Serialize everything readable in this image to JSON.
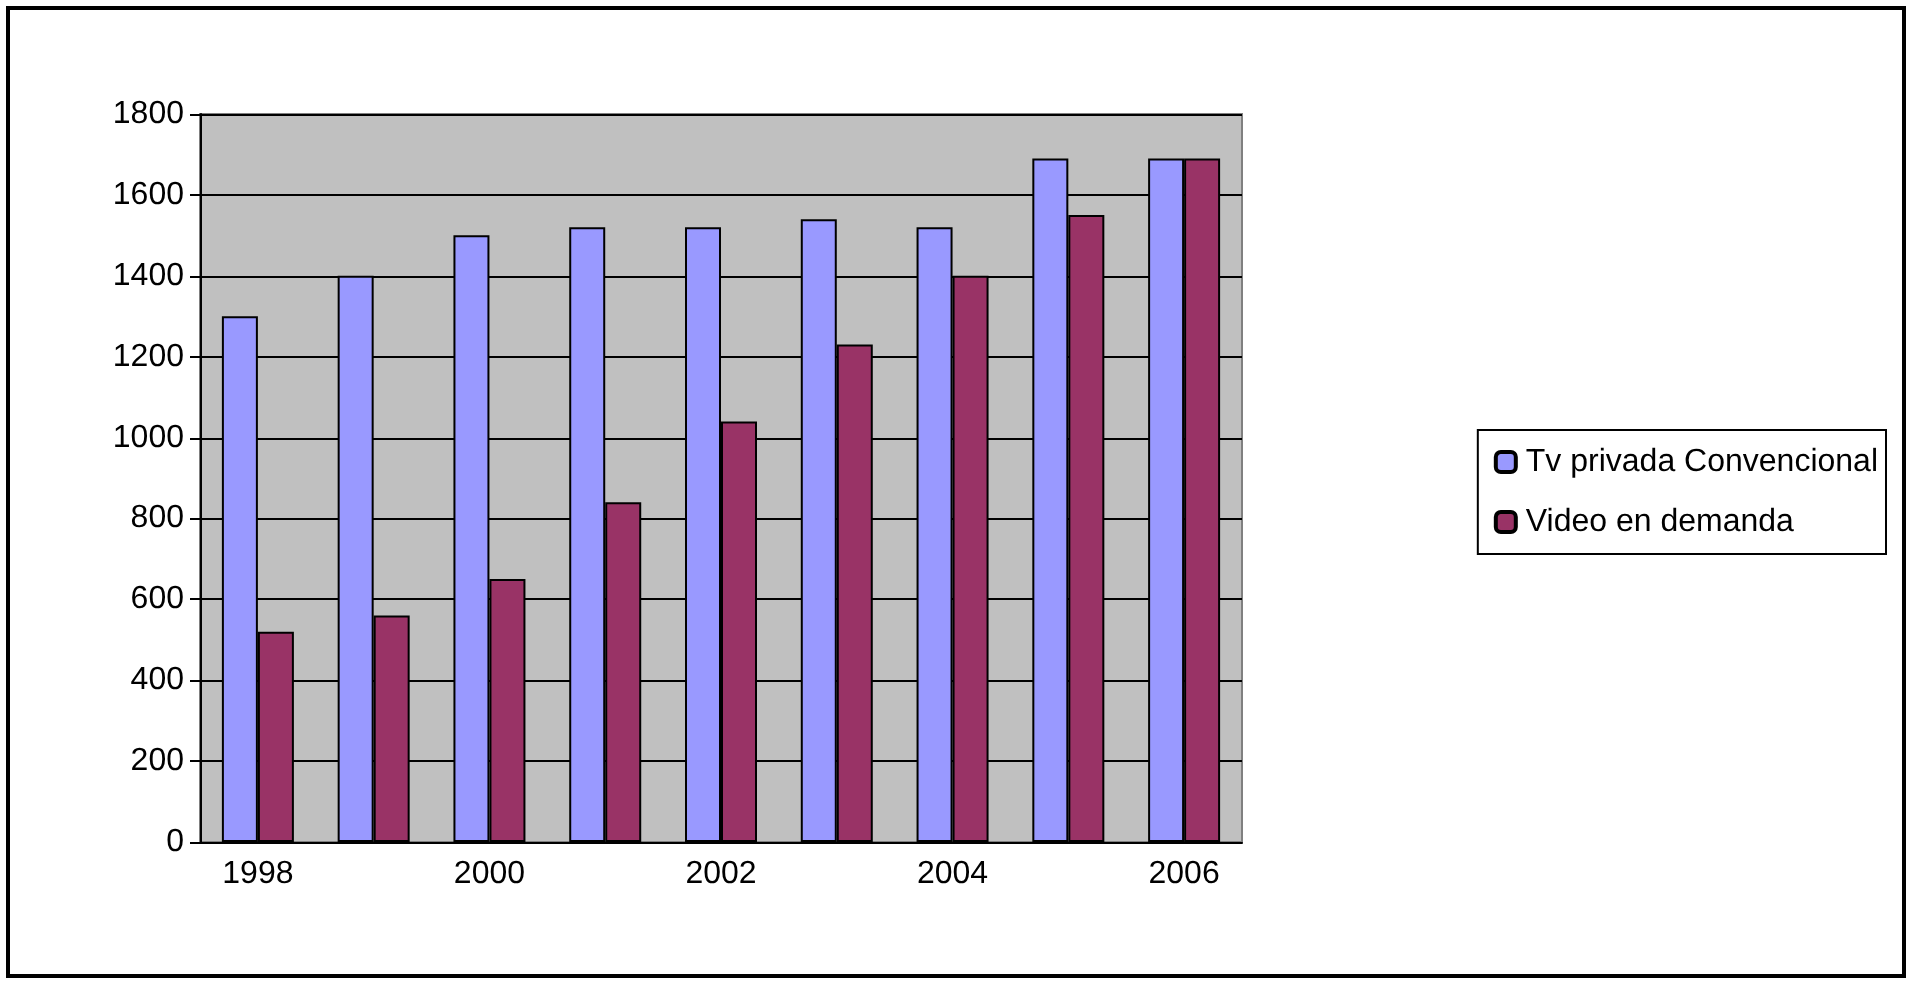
{
  "chart_data": {
    "type": "bar",
    "categories": [
      "1998",
      null,
      "2000",
      null,
      "2002",
      null,
      "2004",
      null,
      "2006"
    ],
    "series": [
      {
        "name": "Tv privada Convencional",
        "color": "#9999ff",
        "values": [
          1300,
          1400,
          1500,
          1520,
          1520,
          1540,
          1520,
          1690,
          1690
        ]
      },
      {
        "name": "Video en demanda",
        "color": "#993366",
        "values": [
          520,
          560,
          650,
          840,
          1040,
          1230,
          1400,
          1550,
          1690
        ]
      }
    ],
    "ylim": [
      0,
      1800
    ],
    "yticks": [
      0,
      200,
      400,
      600,
      800,
      1000,
      1200,
      1400,
      1600,
      1800
    ],
    "grid": "y",
    "legend": "right"
  }
}
